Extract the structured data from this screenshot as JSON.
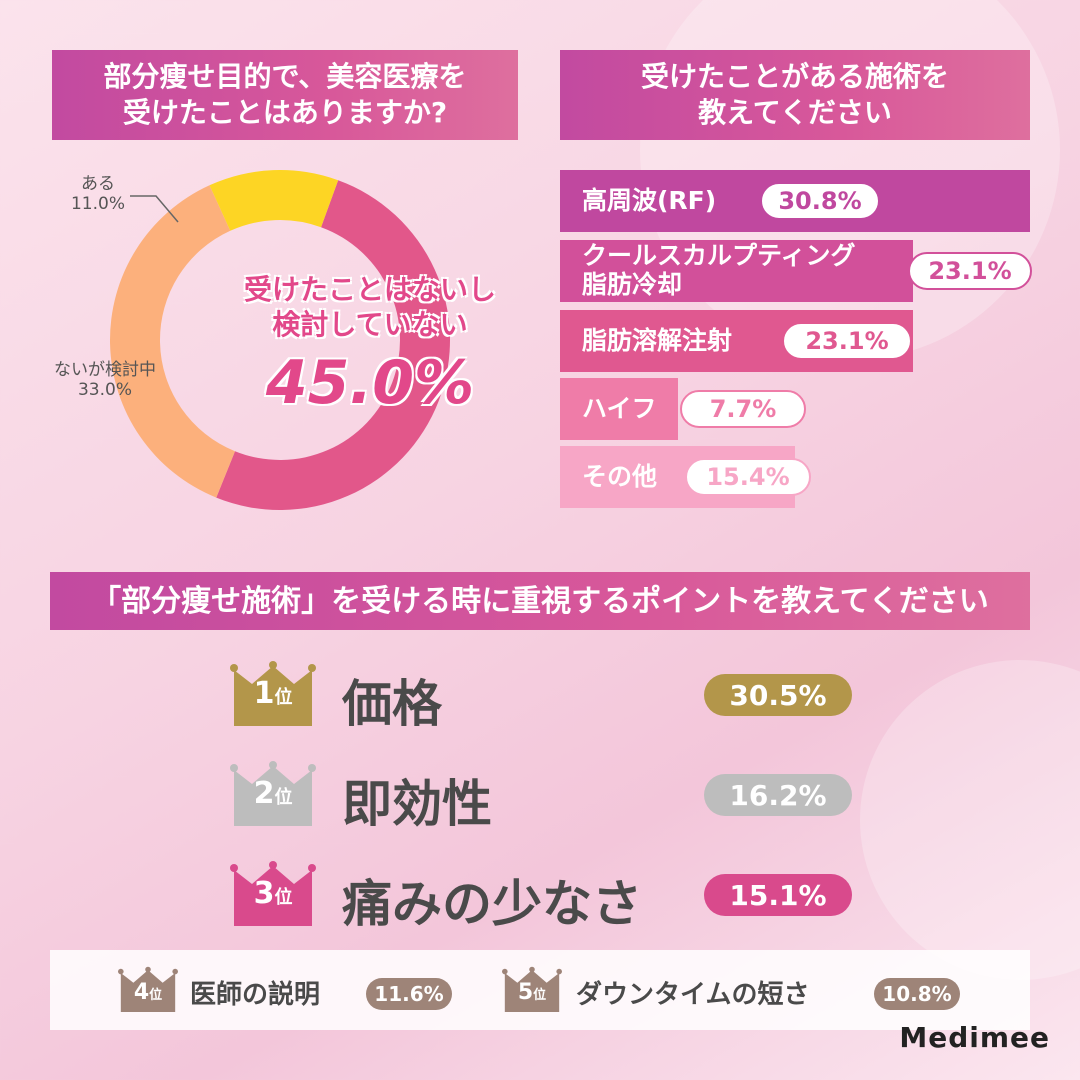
{
  "q1": {
    "line1": "部分痩せ目的で、美容医療を",
    "line2": "受けたことはありますか?"
  },
  "q2": {
    "line1": "受けたことがある施術を",
    "line2": "教えてください"
  },
  "q3": {
    "title": "「部分痩せ施術」を受ける時に重視するポイントを教えてください"
  },
  "chart_data": [
    {
      "type": "pie",
      "categories": [
        "受けたことはないし検討していない",
        "ないが検討中",
        "ある"
      ],
      "values": [
        45.0,
        33.0,
        11.0
      ],
      "colors": [
        "#e2578a",
        "#fcb07c",
        "#fdd524"
      ],
      "labels": [
        {
          "name": "ある",
          "value": "11.0%"
        },
        {
          "name": "ないが検討中",
          "value": "33.0%"
        }
      ],
      "center": {
        "line1": "受けたことはないし",
        "line2": "検討していない",
        "value": "45.0%"
      }
    },
    {
      "type": "bar",
      "categories": [
        "高周波(RF)",
        "クールスカルプティング 脂肪冷却",
        "脂肪溶解注射",
        "ハイフ",
        "その他"
      ],
      "values": [
        30.8,
        23.1,
        23.1,
        7.7,
        15.4
      ],
      "bars": [
        {
          "line1": "高周波(RF)",
          "line2": "",
          "value": "30.8%",
          "color": "#c0489f"
        },
        {
          "line1": "クールスカルプティング",
          "line2": "脂肪冷却",
          "value": "23.1%",
          "color": "#d2509a"
        },
        {
          "line1": "脂肪溶解注射",
          "line2": "",
          "value": "23.1%",
          "color": "#e05890"
        },
        {
          "line1": "ハイフ",
          "line2": "",
          "value": "7.7%",
          "color": "#ef7ca8"
        },
        {
          "line1": "その他",
          "line2": "",
          "value": "15.4%",
          "color": "#f7a6c6"
        }
      ]
    },
    {
      "type": "table",
      "ranks": [
        {
          "rank": "1",
          "suffix": "位",
          "label": "価格",
          "value": "30.5%",
          "color": "#b3964a"
        },
        {
          "rank": "2",
          "suffix": "位",
          "label": "即効性",
          "value": "16.2%",
          "color": "#bdbdbd"
        },
        {
          "rank": "3",
          "suffix": "位",
          "label": "痛みの少なさ",
          "value": "15.1%",
          "color": "#d94a8c"
        },
        {
          "rank": "4",
          "suffix": "位",
          "label": "医師の説明",
          "value": "11.6%",
          "color": "#9e8478"
        },
        {
          "rank": "5",
          "suffix": "位",
          "label": "ダウンタイムの短さ",
          "value": "10.8%",
          "color": "#9e8478"
        }
      ]
    }
  ],
  "logo": "Medimee"
}
